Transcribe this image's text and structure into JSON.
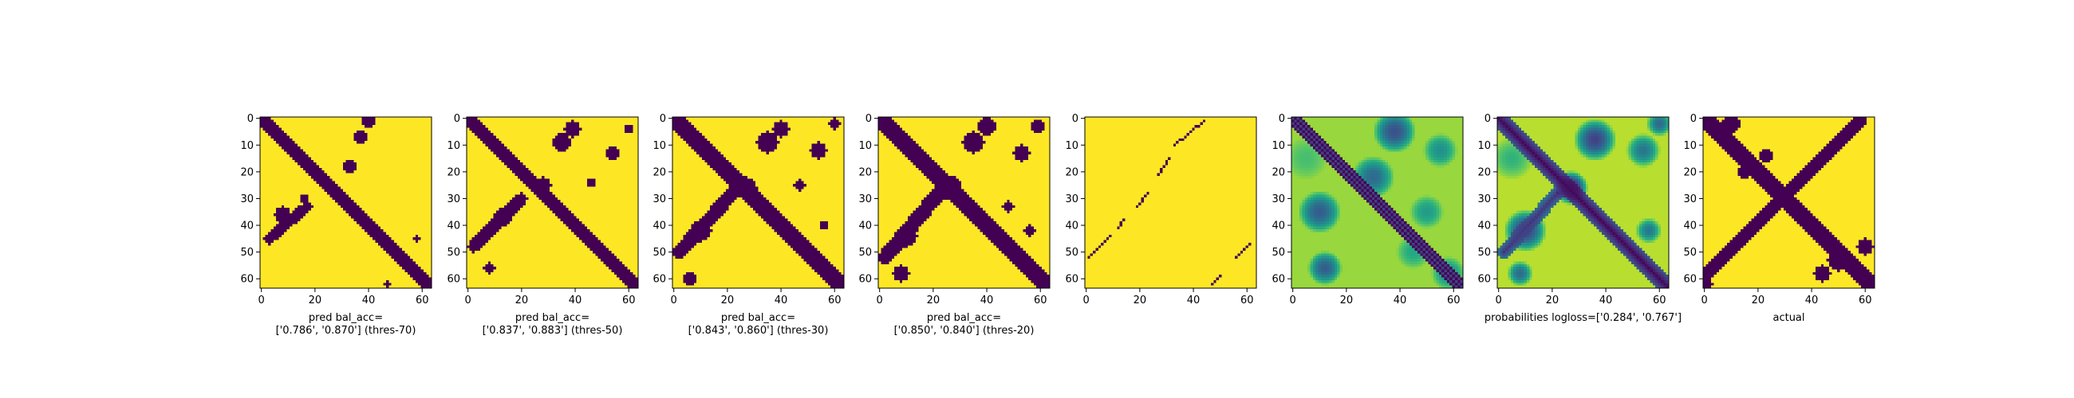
{
  "colors": {
    "background": "#ffffff",
    "binary_low": "#440154",
    "binary_high": "#fde725",
    "axis": "#000000"
  },
  "chart_data": [
    {
      "type": "heatmap",
      "colormap": "viridis",
      "xlabel": "pred bal_acc=\n['0.786', '0.870'] (thres-70)",
      "xlim": [
        0,
        63
      ],
      "ylim": [
        0,
        63
      ],
      "y_inverted": true,
      "x_ticks": [
        0,
        20,
        40,
        60
      ],
      "y_ticks": [
        0,
        10,
        20,
        30,
        40,
        50,
        60
      ],
      "grid": false,
      "pattern": "binary",
      "components": [
        {
          "kind": "diagonal",
          "from": [
            0,
            0
          ],
          "to": [
            63,
            63
          ],
          "width": 2.4
        },
        {
          "kind": "antidiagonal",
          "from": [
            3,
            45
          ],
          "to": [
            17,
            33
          ],
          "width": 2
        },
        {
          "kind": "blob",
          "center": [
            33,
            18
          ],
          "radius": 2.5
        },
        {
          "kind": "blob",
          "center": [
            37,
            7
          ],
          "radius": 2.5
        },
        {
          "kind": "blob",
          "center": [
            40,
            1
          ],
          "radius": 2.5
        },
        {
          "kind": "blob",
          "center": [
            8,
            36
          ],
          "radius": 3
        },
        {
          "kind": "blob",
          "center": [
            16,
            30
          ],
          "radius": 1.5
        },
        {
          "kind": "blob",
          "center": [
            58,
            45
          ],
          "radius": 1
        },
        {
          "kind": "blob",
          "center": [
            47,
            62
          ],
          "radius": 1
        }
      ]
    },
    {
      "type": "heatmap",
      "colormap": "viridis",
      "xlabel": "pred bal_acc=\n['0.837', '0.883'] (thres-50)",
      "xlim": [
        0,
        63
      ],
      "ylim": [
        0,
        63
      ],
      "y_inverted": true,
      "x_ticks": [
        0,
        20,
        40,
        60
      ],
      "y_ticks": [
        0,
        10,
        20,
        30,
        40,
        50,
        60
      ],
      "grid": false,
      "pattern": "binary",
      "components": [
        {
          "kind": "diagonal",
          "from": [
            0,
            0
          ],
          "to": [
            63,
            63
          ],
          "width": 2.8
        },
        {
          "kind": "antidiagonal",
          "from": [
            2,
            48
          ],
          "to": [
            20,
            30
          ],
          "width": 2.2
        },
        {
          "kind": "blob",
          "center": [
            28,
            25
          ],
          "radius": 3
        },
        {
          "kind": "blob",
          "center": [
            35,
            9
          ],
          "radius": 3.5
        },
        {
          "kind": "blob",
          "center": [
            39,
            4
          ],
          "radius": 3
        },
        {
          "kind": "blob",
          "center": [
            13,
            37
          ],
          "radius": 3.5
        },
        {
          "kind": "blob",
          "center": [
            54,
            13
          ],
          "radius": 2.5
        },
        {
          "kind": "blob",
          "center": [
            8,
            56
          ],
          "radius": 2
        },
        {
          "kind": "blob",
          "center": [
            60,
            4
          ],
          "radius": 1.5
        },
        {
          "kind": "blob",
          "center": [
            46,
            24
          ],
          "radius": 1.5
        }
      ]
    },
    {
      "type": "heatmap",
      "colormap": "viridis",
      "xlabel": "pred bal_acc=\n['0.843', '0.860'] (thres-30)",
      "xlim": [
        0,
        63
      ],
      "ylim": [
        0,
        63
      ],
      "y_inverted": true,
      "x_ticks": [
        0,
        20,
        40,
        60
      ],
      "y_ticks": [
        0,
        10,
        20,
        30,
        40,
        50,
        60
      ],
      "grid": false,
      "pattern": "binary",
      "components": [
        {
          "kind": "diagonal",
          "from": [
            0,
            0
          ],
          "to": [
            63,
            63
          ],
          "width": 3.2
        },
        {
          "kind": "antidiagonal",
          "from": [
            2,
            50
          ],
          "to": [
            22,
            28
          ],
          "width": 2.6
        },
        {
          "kind": "blob",
          "center": [
            27,
            26
          ],
          "radius": 4
        },
        {
          "kind": "blob",
          "center": [
            35,
            9
          ],
          "radius": 4
        },
        {
          "kind": "blob",
          "center": [
            40,
            4
          ],
          "radius": 3
        },
        {
          "kind": "blob",
          "center": [
            10,
            42
          ],
          "radius": 4
        },
        {
          "kind": "blob",
          "center": [
            54,
            12
          ],
          "radius": 3
        },
        {
          "kind": "blob",
          "center": [
            6,
            60
          ],
          "radius": 2.5
        },
        {
          "kind": "blob",
          "center": [
            60,
            2
          ],
          "radius": 2
        },
        {
          "kind": "blob",
          "center": [
            47,
            25
          ],
          "radius": 2
        },
        {
          "kind": "blob",
          "center": [
            56,
            40
          ],
          "radius": 1.5
        }
      ]
    },
    {
      "type": "heatmap",
      "colormap": "viridis",
      "xlabel": "pred bal_acc=\n['0.850', '0.840'] (thres-20)",
      "xlim": [
        0,
        63
      ],
      "ylim": [
        0,
        63
      ],
      "y_inverted": true,
      "x_ticks": [
        0,
        20,
        40,
        60
      ],
      "y_ticks": [
        0,
        10,
        20,
        30,
        40,
        50,
        60
      ],
      "grid": false,
      "pattern": "binary",
      "components": [
        {
          "kind": "diagonal",
          "from": [
            0,
            0
          ],
          "to": [
            63,
            63
          ],
          "width": 3.5
        },
        {
          "kind": "antidiagonal",
          "from": [
            2,
            52
          ],
          "to": [
            23,
            27
          ],
          "width": 2.8
        },
        {
          "kind": "blob",
          "center": [
            26,
            26
          ],
          "radius": 4.5
        },
        {
          "kind": "blob",
          "center": [
            35,
            9
          ],
          "radius": 4
        },
        {
          "kind": "blob",
          "center": [
            40,
            3
          ],
          "radius": 3.5
        },
        {
          "kind": "blob",
          "center": [
            10,
            44
          ],
          "radius": 4
        },
        {
          "kind": "blob",
          "center": [
            53,
            13
          ],
          "radius": 3
        },
        {
          "kind": "blob",
          "center": [
            8,
            58
          ],
          "radius": 3
        },
        {
          "kind": "blob",
          "center": [
            59,
            3
          ],
          "radius": 2.5
        },
        {
          "kind": "blob",
          "center": [
            48,
            33
          ],
          "radius": 2
        },
        {
          "kind": "blob",
          "center": [
            56,
            42
          ],
          "radius": 2
        }
      ]
    },
    {
      "type": "heatmap",
      "colormap": "viridis",
      "xlabel": "",
      "xlim": [
        0,
        63
      ],
      "ylim": [
        0,
        63
      ],
      "y_inverted": true,
      "x_ticks": [
        0,
        20,
        40,
        60
      ],
      "y_ticks": [
        0,
        10,
        20,
        30,
        40,
        50,
        60
      ],
      "grid": false,
      "pattern": "binary",
      "components": [
        {
          "kind": "dots",
          "from": [
            44,
            1
          ],
          "to": [
            33,
            10
          ]
        },
        {
          "kind": "dots",
          "from": [
            31,
            15
          ],
          "to": [
            27,
            21
          ]
        },
        {
          "kind": "dots",
          "from": [
            23,
            28
          ],
          "to": [
            19,
            33
          ]
        },
        {
          "kind": "dots",
          "from": [
            14,
            38
          ],
          "to": [
            12,
            41
          ]
        },
        {
          "kind": "dots",
          "from": [
            9,
            44
          ],
          "to": [
            1,
            52
          ]
        },
        {
          "kind": "dots",
          "from": [
            61,
            47
          ],
          "to": [
            56,
            52
          ]
        },
        {
          "kind": "dots",
          "from": [
            50,
            59
          ],
          "to": [
            47,
            62
          ]
        }
      ]
    },
    {
      "type": "heatmap",
      "colormap": "viridis",
      "xlabel": "",
      "xlim": [
        0,
        63
      ],
      "ylim": [
        0,
        63
      ],
      "y_inverted": true,
      "x_ticks": [
        0,
        20,
        40,
        60
      ],
      "y_ticks": [
        0,
        10,
        20,
        30,
        40,
        50,
        60
      ],
      "grid": false,
      "pattern": "probability",
      "base_value": 0.85,
      "components": [
        {
          "kind": "stripes",
          "value": 0.0,
          "offsets": [
            -3,
            -1,
            1,
            3
          ],
          "width": 0.5
        },
        {
          "kind": "stripes",
          "value": 0.2,
          "offsets": [
            -2,
            0,
            2
          ],
          "width": 0.5
        },
        {
          "kind": "blob",
          "center": [
            38,
            5
          ],
          "radius": 5,
          "value": 0.25
        },
        {
          "kind": "blob",
          "center": [
            10,
            35
          ],
          "radius": 5,
          "value": 0.3
        },
        {
          "kind": "blob",
          "center": [
            30,
            22
          ],
          "radius": 5,
          "value": 0.35
        },
        {
          "kind": "blob",
          "center": [
            55,
            12
          ],
          "radius": 4,
          "value": 0.5
        },
        {
          "kind": "blob",
          "center": [
            12,
            56
          ],
          "radius": 4,
          "value": 0.3
        },
        {
          "kind": "blob",
          "center": [
            50,
            35
          ],
          "radius": 4,
          "value": 0.55
        },
        {
          "kind": "blob",
          "center": [
            5,
            15
          ],
          "radius": 5,
          "value": 0.7
        },
        {
          "kind": "blob",
          "center": [
            58,
            58
          ],
          "radius": 4,
          "value": 0.5
        },
        {
          "kind": "blob",
          "center": [
            45,
            50
          ],
          "radius": 4,
          "value": 0.6
        }
      ]
    },
    {
      "type": "heatmap",
      "colormap": "viridis",
      "xlabel": "probabilities logloss=['0.284', '0.767']",
      "xlim": [
        0,
        63
      ],
      "ylim": [
        0,
        63
      ],
      "y_inverted": true,
      "x_ticks": [
        0,
        20,
        40,
        60
      ],
      "y_ticks": [
        0,
        10,
        20,
        30,
        40,
        50,
        60
      ],
      "grid": false,
      "pattern": "probability",
      "base_value": 0.9,
      "components": [
        {
          "kind": "diagonal",
          "from": [
            0,
            0
          ],
          "to": [
            63,
            63
          ],
          "width": 3,
          "value": 0.02
        },
        {
          "kind": "antidiagonal",
          "from": [
            2,
            50
          ],
          "to": [
            22,
            28
          ],
          "width": 2.5,
          "value": 0.15
        },
        {
          "kind": "blob",
          "center": [
            27,
            26
          ],
          "radius": 4,
          "value": 0.05
        },
        {
          "kind": "blob",
          "center": [
            36,
            8
          ],
          "radius": 5,
          "value": 0.2
        },
        {
          "kind": "blob",
          "center": [
            10,
            42
          ],
          "radius": 5,
          "value": 0.2
        },
        {
          "kind": "blob",
          "center": [
            54,
            12
          ],
          "radius": 4,
          "value": 0.4
        },
        {
          "kind": "blob",
          "center": [
            8,
            58
          ],
          "radius": 3,
          "value": 0.35
        },
        {
          "kind": "blob",
          "center": [
            56,
            42
          ],
          "radius": 3,
          "value": 0.4
        },
        {
          "kind": "blob",
          "center": [
            5,
            15
          ],
          "radius": 5,
          "value": 0.65
        },
        {
          "kind": "blob",
          "center": [
            60,
            2
          ],
          "radius": 3,
          "value": 0.35
        }
      ]
    },
    {
      "type": "heatmap",
      "colormap": "viridis",
      "xlabel": "actual",
      "xlim": [
        0,
        63
      ],
      "ylim": [
        0,
        63
      ],
      "y_inverted": true,
      "x_ticks": [
        0,
        20,
        40,
        60
      ],
      "y_ticks": [
        0,
        10,
        20,
        30,
        40,
        50,
        60
      ],
      "grid": false,
      "pattern": "binary",
      "components": [
        {
          "kind": "diagonal",
          "from": [
            0,
            0
          ],
          "to": [
            63,
            63
          ],
          "width": 3
        },
        {
          "kind": "antidiagonal",
          "from": [
            1,
            58
          ],
          "to": [
            58,
            1
          ],
          "width": 2.5
        },
        {
          "kind": "blob",
          "center": [
            10,
            2
          ],
          "radius": 3.5
        },
        {
          "kind": "blob",
          "center": [
            15,
            20
          ],
          "radius": 2.5
        },
        {
          "kind": "blob",
          "center": [
            23,
            14
          ],
          "radius": 2.5
        },
        {
          "kind": "blob",
          "center": [
            30,
            30
          ],
          "radius": 3
        },
        {
          "kind": "blob",
          "center": [
            36,
            24
          ],
          "radius": 2
        },
        {
          "kind": "blob",
          "center": [
            50,
            53
          ],
          "radius": 4
        },
        {
          "kind": "blob",
          "center": [
            44,
            58
          ],
          "radius": 3
        },
        {
          "kind": "blob",
          "center": [
            60,
            48
          ],
          "radius": 3
        },
        {
          "kind": "blob",
          "center": [
            1,
            62
          ],
          "radius": 2
        }
      ]
    }
  ]
}
